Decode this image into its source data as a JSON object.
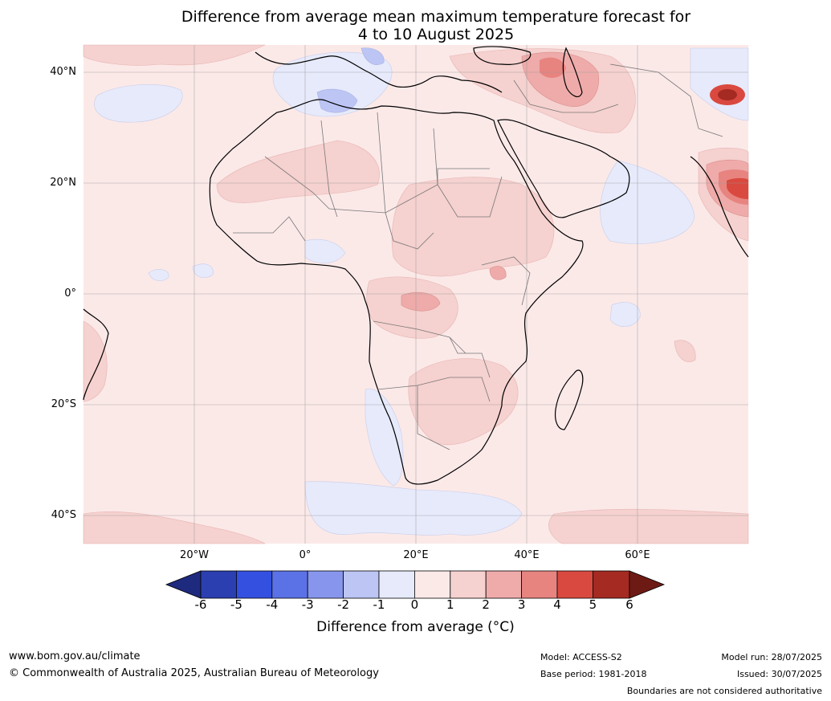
{
  "title_line1": "Difference from average mean maximum temperature forecast for",
  "title_line2": "4 to 10 August 2025",
  "lat_labels": [
    "40°N",
    "20°N",
    "0°",
    "20°S",
    "40°S"
  ],
  "lon_labels": [
    "20°W",
    "0°",
    "20°E",
    "40°E",
    "60°E"
  ],
  "colorbar": {
    "ticks": [
      "-6",
      "-5",
      "-4",
      "-3",
      "-2",
      "-1",
      "0",
      "1",
      "2",
      "3",
      "4",
      "5",
      "6"
    ],
    "colors": [
      "#1e2a7e",
      "#2b3fb0",
      "#3450e0",
      "#5b72e6",
      "#8796ec",
      "#bcc5f4",
      "#e6eafb",
      "#fbe9e8",
      "#f5d1cf",
      "#eeabaa",
      "#e78480",
      "#d9493f",
      "#a42a22",
      "#6e1a14"
    ],
    "label": "Difference from average (°C)"
  },
  "footer": {
    "website": "www.bom.gov.au/climate",
    "copyright": "© Commonwealth of Australia 2025, Australian Bureau of Meteorology",
    "model": "Model: ACCESS-S2",
    "base_period": "Base period: 1981-2018",
    "model_run": "Model run: 28/07/2025",
    "issued": "Issued: 30/07/2025",
    "disclaimer": "Boundaries are not considered authoritative"
  }
}
